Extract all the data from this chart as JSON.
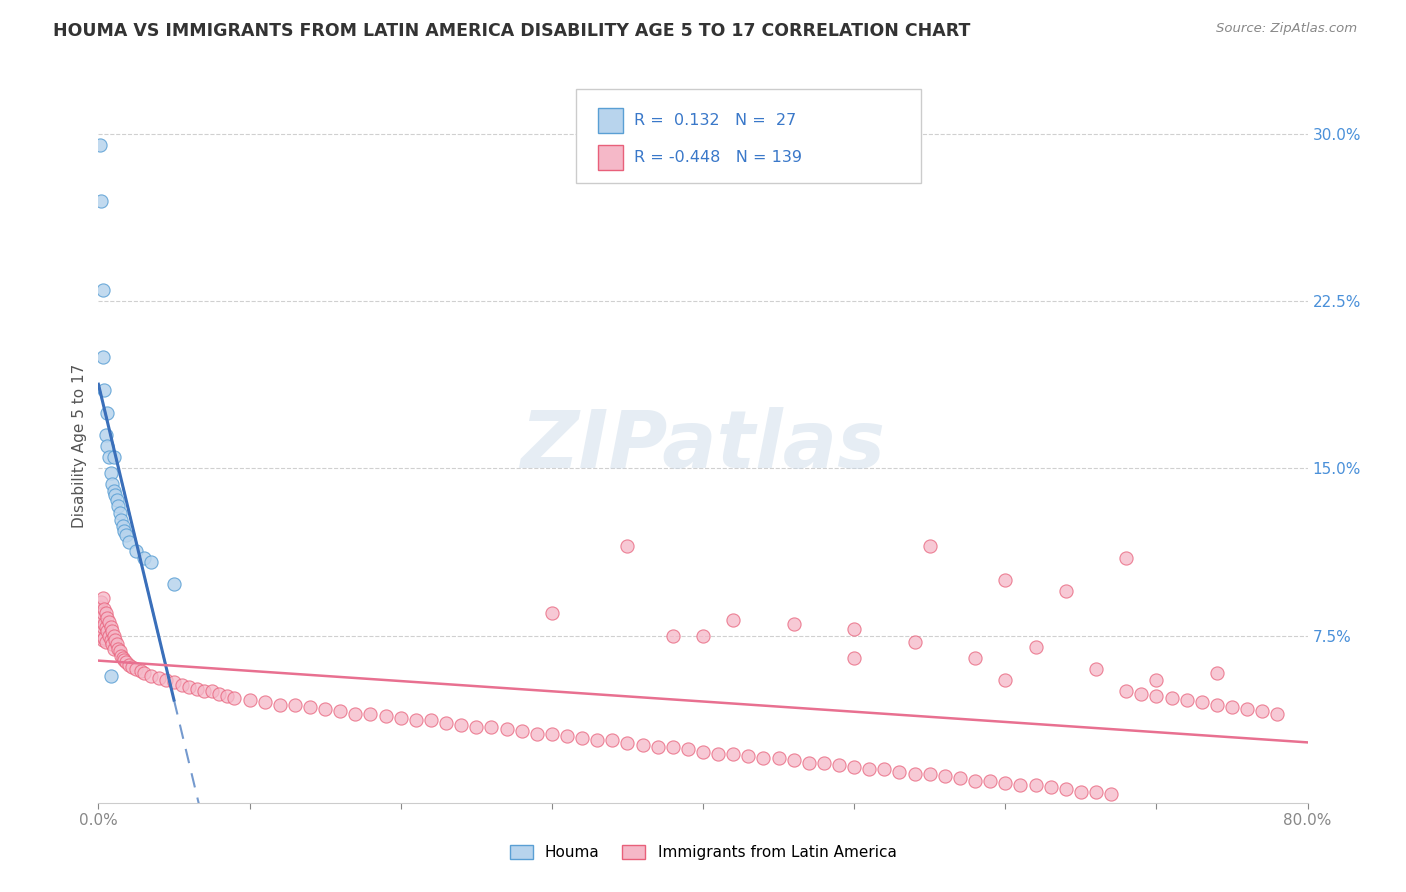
{
  "title": "HOUMA VS IMMIGRANTS FROM LATIN AMERICA DISABILITY AGE 5 TO 17 CORRELATION CHART",
  "source": "Source: ZipAtlas.com",
  "ylabel": "Disability Age 5 to 17",
  "xlim": [
    0.0,
    0.8
  ],
  "ylim": [
    0.0,
    0.32
  ],
  "yticks_right": [
    0.075,
    0.15,
    0.225,
    0.3
  ],
  "ytick_labels_right": [
    "7.5%",
    "15.0%",
    "22.5%",
    "30.0%"
  ],
  "color_houma_fill": "#b8d4ed",
  "color_houma_edge": "#5a9fd4",
  "color_latin_fill": "#f5b8c8",
  "color_latin_edge": "#e8607a",
  "color_houma_trend": "#3a6fba",
  "color_latin_trend": "#e87090",
  "legend_label1": "Houma",
  "legend_label2": "Immigrants from Latin America",
  "watermark": "ZIPatlas",
  "background_color": "#ffffff",
  "houma_x": [
    0.001,
    0.002,
    0.003,
    0.004,
    0.005,
    0.006,
    0.007,
    0.008,
    0.009,
    0.01,
    0.011,
    0.012,
    0.013,
    0.014,
    0.015,
    0.016,
    0.017,
    0.018,
    0.02,
    0.025,
    0.03,
    0.035,
    0.05,
    0.01,
    0.008,
    0.003,
    0.006
  ],
  "houma_y": [
    0.295,
    0.27,
    0.2,
    0.185,
    0.165,
    0.16,
    0.155,
    0.148,
    0.143,
    0.14,
    0.138,
    0.136,
    0.133,
    0.13,
    0.127,
    0.124,
    0.122,
    0.12,
    0.117,
    0.113,
    0.11,
    0.108,
    0.098,
    0.155,
    0.057,
    0.23,
    0.175
  ],
  "latin_x": [
    0.001,
    0.001,
    0.001,
    0.002,
    0.002,
    0.002,
    0.003,
    0.003,
    0.003,
    0.003,
    0.004,
    0.004,
    0.004,
    0.005,
    0.005,
    0.005,
    0.006,
    0.006,
    0.007,
    0.007,
    0.008,
    0.008,
    0.009,
    0.009,
    0.01,
    0.01,
    0.011,
    0.012,
    0.013,
    0.014,
    0.015,
    0.016,
    0.017,
    0.018,
    0.02,
    0.022,
    0.025,
    0.028,
    0.03,
    0.035,
    0.04,
    0.045,
    0.05,
    0.055,
    0.06,
    0.065,
    0.07,
    0.075,
    0.08,
    0.085,
    0.09,
    0.1,
    0.11,
    0.12,
    0.13,
    0.14,
    0.15,
    0.16,
    0.17,
    0.18,
    0.19,
    0.2,
    0.21,
    0.22,
    0.23,
    0.24,
    0.25,
    0.26,
    0.27,
    0.28,
    0.29,
    0.3,
    0.31,
    0.32,
    0.33,
    0.34,
    0.35,
    0.36,
    0.37,
    0.38,
    0.39,
    0.4,
    0.41,
    0.42,
    0.43,
    0.44,
    0.45,
    0.46,
    0.47,
    0.48,
    0.49,
    0.5,
    0.51,
    0.52,
    0.53,
    0.54,
    0.55,
    0.56,
    0.57,
    0.58,
    0.59,
    0.6,
    0.61,
    0.62,
    0.63,
    0.64,
    0.65,
    0.66,
    0.67,
    0.68,
    0.69,
    0.7,
    0.71,
    0.72,
    0.73,
    0.74,
    0.75,
    0.76,
    0.77,
    0.78,
    0.35,
    0.55,
    0.6,
    0.64,
    0.68,
    0.42,
    0.38,
    0.46,
    0.5,
    0.54,
    0.58,
    0.62,
    0.66,
    0.7,
    0.74,
    0.3,
    0.4,
    0.5,
    0.6
  ],
  "latin_y": [
    0.088,
    0.082,
    0.075,
    0.09,
    0.083,
    0.076,
    0.092,
    0.085,
    0.079,
    0.073,
    0.087,
    0.08,
    0.074,
    0.085,
    0.079,
    0.072,
    0.083,
    0.077,
    0.081,
    0.075,
    0.079,
    0.073,
    0.077,
    0.071,
    0.075,
    0.069,
    0.073,
    0.071,
    0.069,
    0.068,
    0.066,
    0.065,
    0.064,
    0.063,
    0.062,
    0.061,
    0.06,
    0.059,
    0.058,
    0.057,
    0.056,
    0.055,
    0.054,
    0.053,
    0.052,
    0.051,
    0.05,
    0.05,
    0.049,
    0.048,
    0.047,
    0.046,
    0.045,
    0.044,
    0.044,
    0.043,
    0.042,
    0.041,
    0.04,
    0.04,
    0.039,
    0.038,
    0.037,
    0.037,
    0.036,
    0.035,
    0.034,
    0.034,
    0.033,
    0.032,
    0.031,
    0.031,
    0.03,
    0.029,
    0.028,
    0.028,
    0.027,
    0.026,
    0.025,
    0.025,
    0.024,
    0.023,
    0.022,
    0.022,
    0.021,
    0.02,
    0.02,
    0.019,
    0.018,
    0.018,
    0.017,
    0.016,
    0.015,
    0.015,
    0.014,
    0.013,
    0.013,
    0.012,
    0.011,
    0.01,
    0.01,
    0.009,
    0.008,
    0.008,
    0.007,
    0.006,
    0.005,
    0.005,
    0.004,
    0.05,
    0.049,
    0.048,
    0.047,
    0.046,
    0.045,
    0.044,
    0.043,
    0.042,
    0.041,
    0.04,
    0.115,
    0.115,
    0.1,
    0.095,
    0.11,
    0.082,
    0.075,
    0.08,
    0.078,
    0.072,
    0.065,
    0.07,
    0.06,
    0.055,
    0.058,
    0.085,
    0.075,
    0.065,
    0.055
  ]
}
